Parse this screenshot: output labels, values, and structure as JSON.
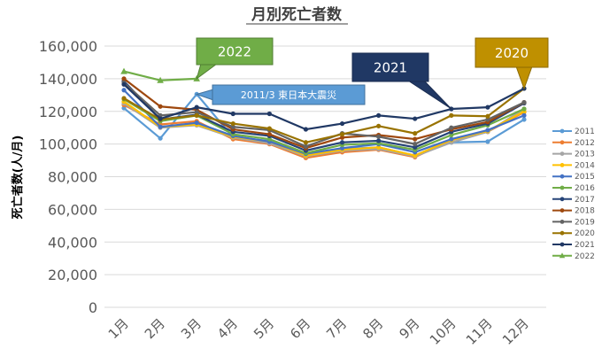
{
  "chart_data": {
    "type": "line",
    "title": "月別死亡者数",
    "xlabel": "",
    "ylabel": "死亡者数(人/月)",
    "categories": [
      "1月",
      "2月",
      "3月",
      "4月",
      "5月",
      "6月",
      "7月",
      "8月",
      "9月",
      "10月",
      "11月",
      "12月"
    ],
    "ylim": [
      0,
      160000
    ],
    "yticks": [
      0,
      20000,
      40000,
      60000,
      80000,
      100000,
      120000,
      140000,
      160000
    ],
    "ytick_labels": [
      "0",
      "20,000",
      "40,000",
      "60,000",
      "80,000",
      "100,000",
      "120,000",
      "140,000",
      "160,000"
    ],
    "grid": true,
    "legend_position": "right",
    "series": [
      {
        "name": "2011",
        "color": "#5b9bd5",
        "marker": "circle",
        "values": [
          122000,
          103500,
          130500,
          104000,
          102000,
          93000,
          97000,
          98000,
          93000,
          101000,
          101500,
          115000
        ]
      },
      {
        "name": "2012",
        "color": "#ed7d31",
        "marker": "circle",
        "values": [
          124000,
          112000,
          114000,
          103000,
          100000,
          91500,
          95000,
          96500,
          92000,
          102500,
          107500,
          119500
        ]
      },
      {
        "name": "2013",
        "color": "#a5a5a5",
        "marker": "circle",
        "values": [
          125000,
          110000,
          111500,
          104000,
          100500,
          92500,
          96000,
          97000,
          92500,
          101000,
          107500,
          121500
        ]
      },
      {
        "name": "2014",
        "color": "#ffc000",
        "marker": "circle",
        "values": [
          126000,
          110500,
          112000,
          104500,
          101500,
          93000,
          96500,
          98000,
          93000,
          102500,
          108000,
          120000
        ]
      },
      {
        "name": "2015",
        "color": "#4472c4",
        "marker": "circle",
        "values": [
          133000,
          110500,
          113000,
          105000,
          101500,
          94000,
          97500,
          100000,
          95000,
          103000,
          108500,
          117500
        ]
      },
      {
        "name": "2016",
        "color": "#70ad47",
        "marker": "circle",
        "values": [
          127500,
          114000,
          117500,
          106000,
          103000,
          94500,
          99500,
          100500,
          96500,
          105500,
          111500,
          121500
        ]
      },
      {
        "name": "2017",
        "color": "#264478",
        "marker": "circle",
        "values": [
          138500,
          115000,
          118000,
          107500,
          105000,
          96000,
          101000,
          102000,
          98000,
          107500,
          112500,
          125000
        ]
      },
      {
        "name": "2018",
        "color": "#9e480e",
        "marker": "circle",
        "values": [
          140000,
          123000,
          121000,
          109000,
          106000,
          97500,
          104000,
          105500,
          103000,
          109000,
          113500,
          125500
        ]
      },
      {
        "name": "2019",
        "color": "#636363",
        "marker": "circle",
        "values": [
          137500,
          117500,
          119500,
          110500,
          108500,
          98500,
          106500,
          104500,
          100000,
          110000,
          115000,
          125500
        ]
      },
      {
        "name": "2020",
        "color": "#997300",
        "marker": "circle",
        "values": [
          128000,
          115000,
          117500,
          112500,
          109500,
          101000,
          106000,
          111000,
          106500,
          117500,
          117000,
          134000
        ]
      },
      {
        "name": "2021",
        "color": "#203864",
        "marker": "circle",
        "values": [
          136500,
          115500,
          122500,
          118500,
          118500,
          109000,
          112500,
          117500,
          115500,
          121500,
          122500,
          134000
        ]
      },
      {
        "name": "2022",
        "color": "#70ad47",
        "marker": "triangle",
        "values": [
          144500,
          139000,
          140000,
          null,
          null,
          null,
          null,
          null,
          null,
          null,
          null,
          null
        ]
      }
    ],
    "annotations": [
      {
        "id": "2022",
        "text": "2022",
        "bg": "#70ad47",
        "border": "#507e32",
        "target_series": "2022",
        "target_index": 2
      },
      {
        "id": "eq",
        "text": "2011/3 東日本大震災",
        "bg": "#5b9bd5",
        "border": "#41719c",
        "target_series": "2011",
        "target_index": 2
      },
      {
        "id": "2021",
        "text": "2021",
        "bg": "#203864",
        "border": "#1a2c50",
        "target_series": "2021",
        "target_index": 9
      },
      {
        "id": "2020",
        "text": "2020",
        "bg": "#bf9000",
        "border": "#8c6a00",
        "target_series": "2020",
        "target_index": 11
      }
    ]
  }
}
